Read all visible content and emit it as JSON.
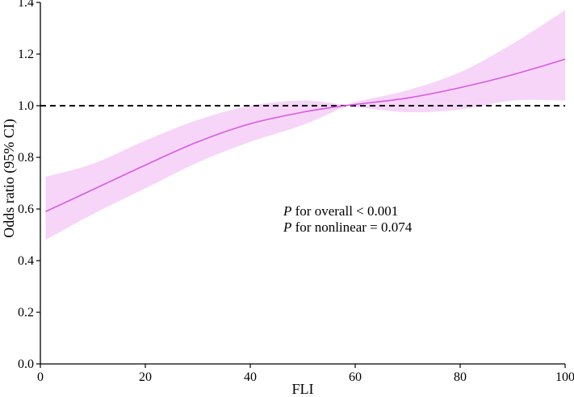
{
  "chart_data": {
    "type": "line",
    "xlabel": "FLI",
    "ylabel": "Odds ratio (95% CI)",
    "xlim": [
      0,
      100
    ],
    "ylim": [
      0,
      1.4
    ],
    "xticks": [
      "0",
      "20",
      "40",
      "60",
      "80",
      "100"
    ],
    "yticks": [
      "0.0",
      "0.2",
      "0.4",
      "0.6",
      "0.8",
      "1.0",
      "1.2",
      "1.4"
    ],
    "grid": false,
    "reference_line": {
      "y": 1.0,
      "style": "dashed"
    },
    "colors": {
      "line": "#d65ce0",
      "band": "#f6d5f8",
      "reference": "#000000"
    },
    "series": [
      {
        "x": [
          1,
          10,
          20,
          30,
          40,
          50,
          58,
          60,
          70,
          80,
          90,
          100
        ],
        "y": [
          0.59,
          0.675,
          0.77,
          0.86,
          0.93,
          0.975,
          1.0,
          1.005,
          1.03,
          1.07,
          1.12,
          1.18
        ],
        "lower": [
          0.48,
          0.58,
          0.68,
          0.78,
          0.86,
          0.925,
          0.995,
          0.995,
          0.975,
          0.985,
          1.02,
          1.02
        ],
        "upper": [
          0.725,
          0.775,
          0.865,
          0.945,
          1.0,
          1.02,
          1.005,
          1.015,
          1.06,
          1.13,
          1.24,
          1.37
        ]
      }
    ],
    "annotations": [
      {
        "italic": "P",
        "text": " for overall < 0.001"
      },
      {
        "italic": "P",
        "text": " for nonlinear = 0.074"
      }
    ]
  }
}
